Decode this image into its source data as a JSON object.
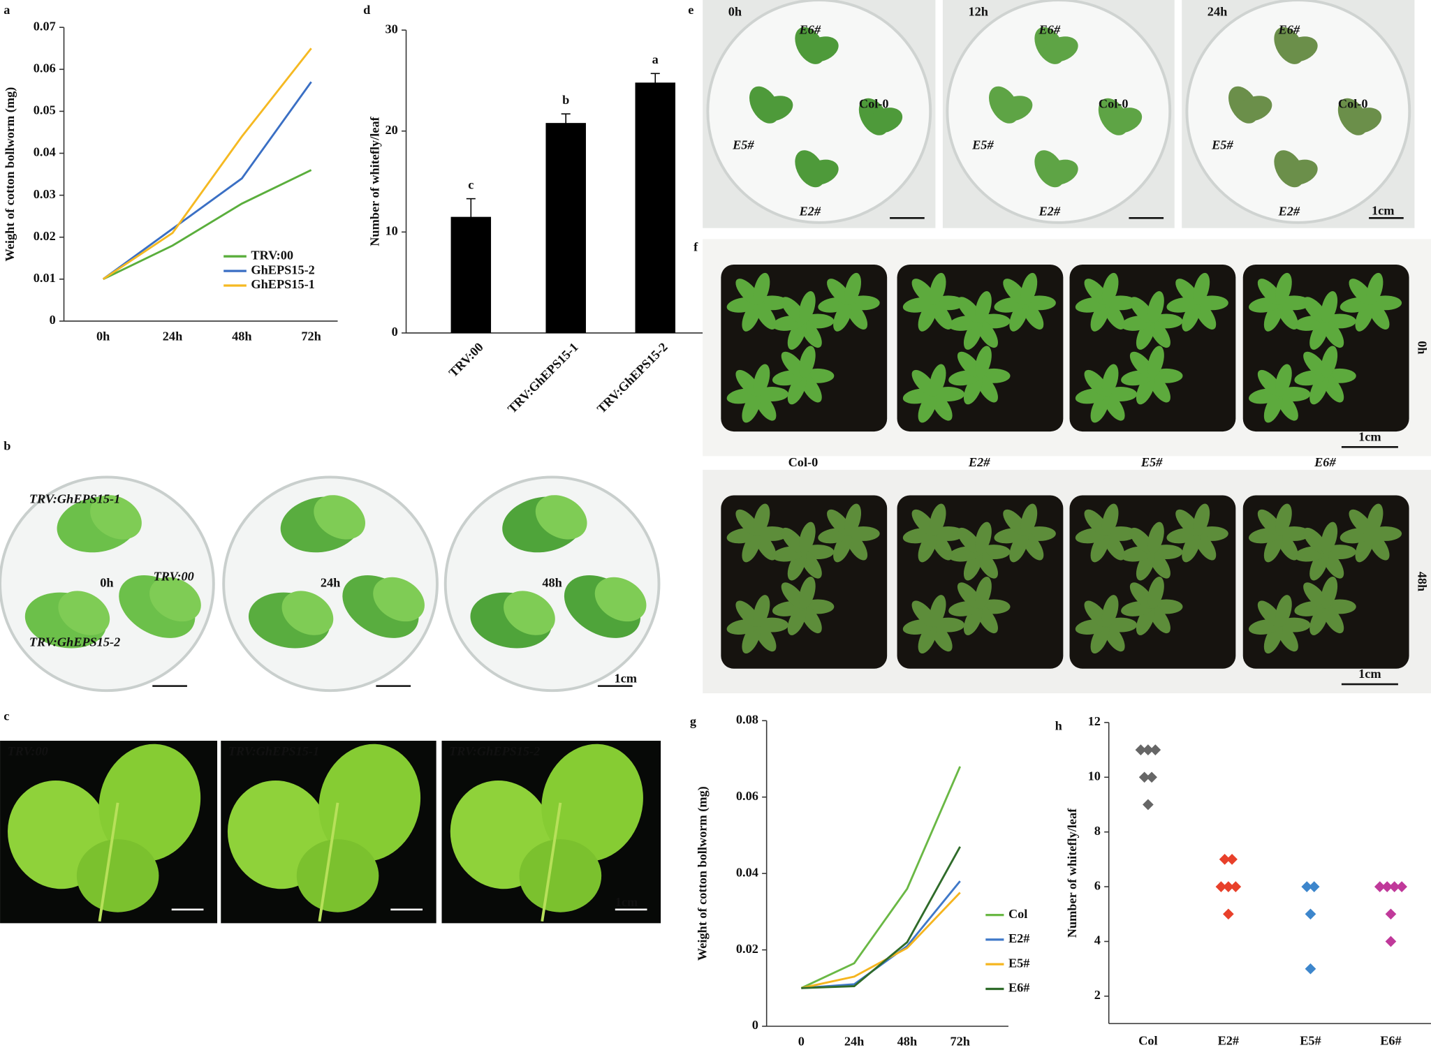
{
  "panel_labels": [
    "a",
    "b",
    "c",
    "d",
    "e",
    "f",
    "g",
    "h"
  ],
  "chart_data": [
    {
      "type": "line",
      "y_label": "Weight of cotton bollworm (mg)",
      "categories": [
        "0h",
        "24h",
        "48h",
        "72h"
      ],
      "series": [
        {
          "name": "TRV:00",
          "color": "#5aae3c",
          "values": [
            0.01,
            0.018,
            0.028,
            0.036
          ]
        },
        {
          "name": "GhEPS15-2",
          "color": "#3a6fc4",
          "values": [
            0.01,
            0.022,
            0.034,
            0.057
          ]
        },
        {
          "name": "GhEPS15-1",
          "color": "#f5b922",
          "values": [
            0.01,
            0.021,
            0.044,
            0.065
          ]
        }
      ],
      "ylim": [
        0,
        0.07
      ],
      "yticks": [
        0,
        0.01,
        0.02,
        0.03,
        0.04,
        0.05,
        0.06,
        0.07
      ],
      "legend": "lower-right"
    },
    {
      "type": "bar",
      "y_label": "Number of whitefly/leaf",
      "categories": [
        "TRV:00",
        "TRV:GhEPS15-1",
        "TRV:GhEPS15-2"
      ],
      "values": [
        11.5,
        20.8,
        24.8
      ],
      "errors": [
        1.8,
        0.9,
        0.9
      ],
      "significance": [
        "c",
        "b",
        "a"
      ],
      "color": "#000000",
      "ylim": [
        0,
        30
      ],
      "yticks": [
        0,
        10,
        20,
        30
      ]
    },
    {
      "type": "line",
      "y_label": "Weight of cotton bollworm (mg)",
      "categories": [
        "0",
        "24h",
        "48h",
        "72h"
      ],
      "series": [
        {
          "name": "Col",
          "color": "#6ab845",
          "values": [
            0.01,
            0.0165,
            0.036,
            0.068
          ]
        },
        {
          "name": "E2#",
          "color": "#3f78c8",
          "values": [
            0.01,
            0.011,
            0.021,
            0.038
          ]
        },
        {
          "name": "E5#",
          "color": "#f5b51f",
          "values": [
            0.01,
            0.013,
            0.0205,
            0.035
          ]
        },
        {
          "name": "E6#",
          "color": "#2f6b2a",
          "values": [
            0.01,
            0.0105,
            0.022,
            0.047
          ]
        }
      ],
      "ylim": [
        0,
        0.08
      ],
      "yticks": [
        0,
        0.02,
        0.04,
        0.06,
        0.08
      ],
      "legend": "lower-right"
    },
    {
      "type": "scatter",
      "y_label": "Number of whitefly/leaf",
      "categories": [
        "Col",
        "E2#",
        "E5#",
        "E6#"
      ],
      "groups": [
        [
          11,
          11,
          11,
          10,
          10,
          9
        ],
        [
          7,
          7,
          6,
          6,
          6,
          5
        ],
        [
          6,
          6,
          5,
          3
        ],
        [
          6,
          6,
          6,
          6,
          5,
          4
        ]
      ],
      "colors": [
        "#666666",
        "#e8402a",
        "#3d86cc",
        "#c0399a"
      ],
      "ylim": [
        1,
        12
      ],
      "yticks": [
        2,
        4,
        6,
        8,
        10,
        12
      ]
    }
  ],
  "photos": {
    "b": {
      "times": [
        "0h",
        "24h",
        "48h"
      ],
      "labels": [
        "TRV:GhEPS15-1",
        "TRV:00",
        "TRV:GhEPS15-2"
      ],
      "scale": "1cm"
    },
    "c": {
      "labels": [
        "TRV:00",
        "TRV:GhEPS15-1",
        "TRV:GhEPS15-2"
      ],
      "scale": "1cm"
    },
    "e": {
      "times": [
        "0h",
        "12h",
        "24h"
      ],
      "labels": [
        "E6#",
        "Col-0",
        "E5#",
        "E2#"
      ],
      "scale": "1cm"
    },
    "f": {
      "genotypes": [
        "Col-0",
        "E2#",
        "E5#",
        "E6#"
      ],
      "times": [
        "0h",
        "48h"
      ],
      "scale": "1cm"
    }
  }
}
